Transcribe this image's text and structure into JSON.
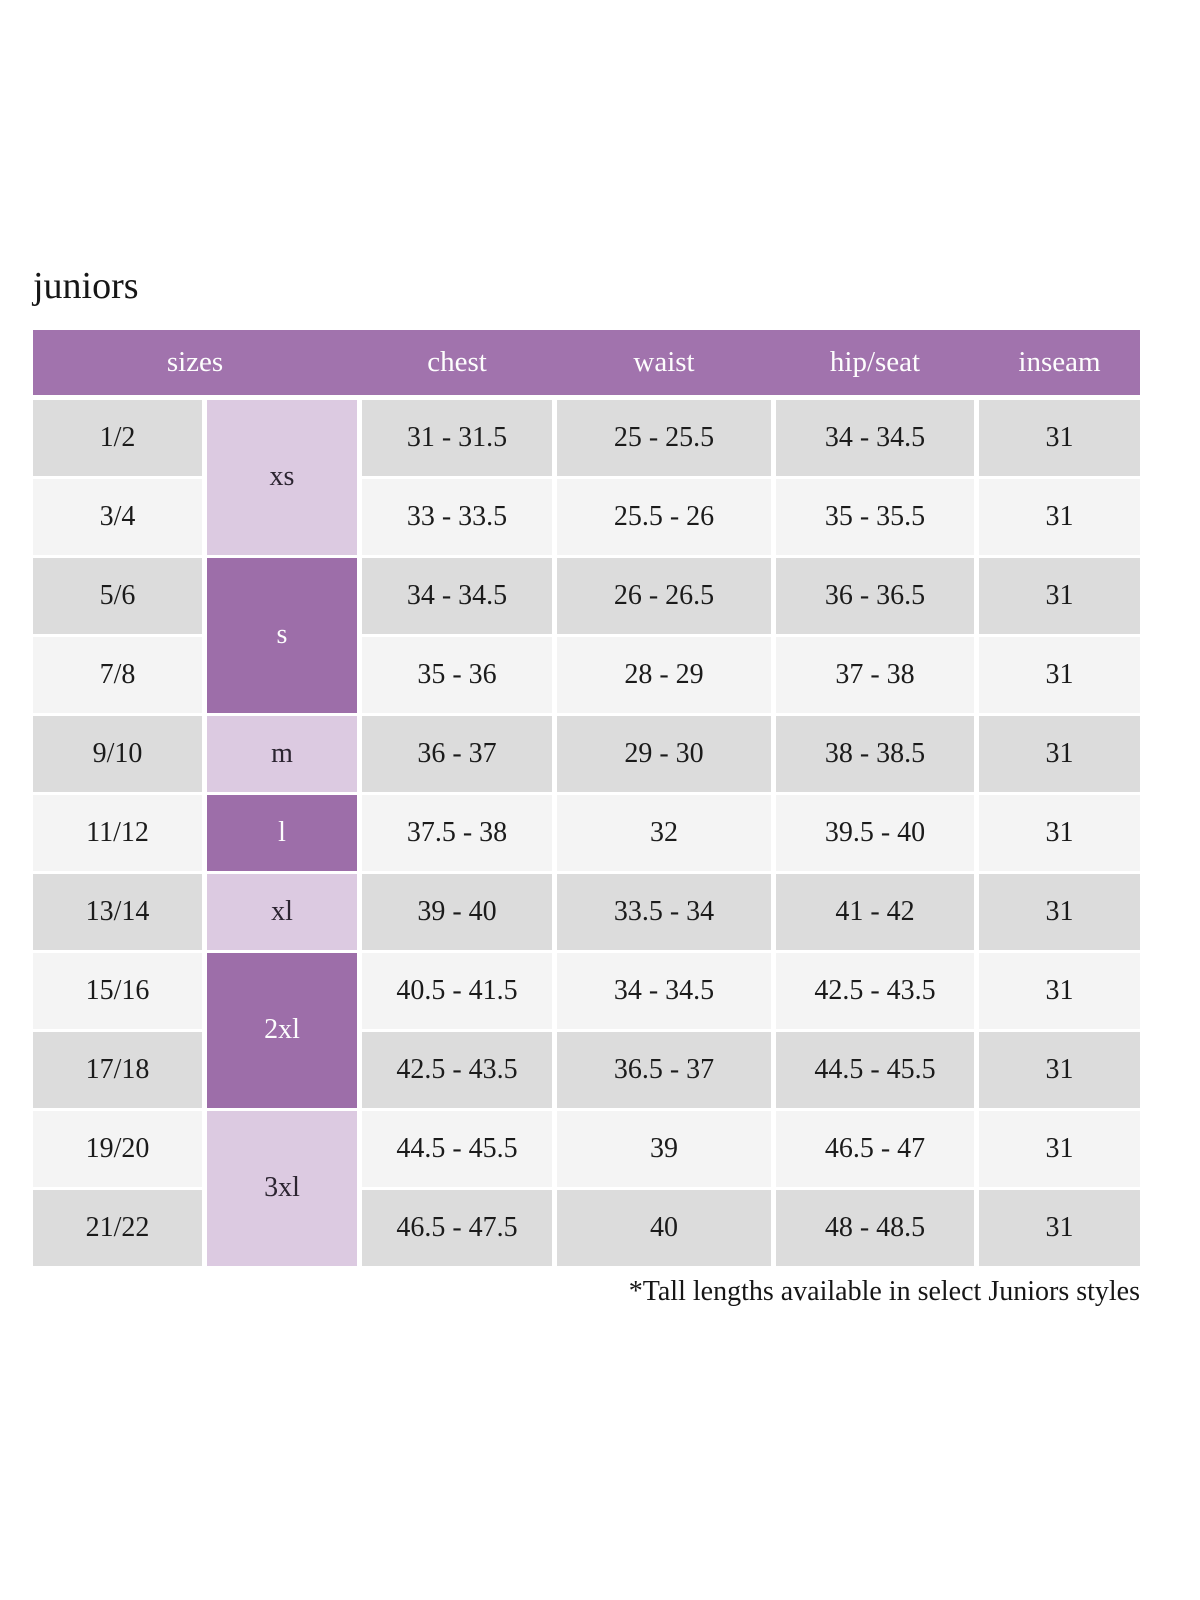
{
  "page": {
    "title": "juniors",
    "footnote": "*Tall lengths available in select Juniors styles"
  },
  "colors": {
    "header_bg": "#a173ad",
    "size_group_dark": "#9d6ea9",
    "size_group_light": "#dccae1",
    "row_shaded": "#dcdcdc",
    "row_plain": "#f4f4f4",
    "header_text": "#fdfdfd",
    "body_text": "#1b1b1b"
  },
  "table": {
    "headers": {
      "sizes": "sizes",
      "chest": "chest",
      "waist": "waist",
      "hip_seat": "hip/seat",
      "inseam": "inseam"
    },
    "size_groups": [
      {
        "label": "xs",
        "rows_spanned": 2,
        "shade": "light"
      },
      {
        "label": "s",
        "rows_spanned": 2,
        "shade": "dark"
      },
      {
        "label": "m",
        "rows_spanned": 1,
        "shade": "light"
      },
      {
        "label": "l",
        "rows_spanned": 1,
        "shade": "dark"
      },
      {
        "label": "xl",
        "rows_spanned": 1,
        "shade": "light"
      },
      {
        "label": "2xl",
        "rows_spanned": 2,
        "shade": "dark"
      },
      {
        "label": "3xl",
        "rows_spanned": 2,
        "shade": "light"
      }
    ],
    "rows": [
      {
        "size": "1/2",
        "chest": "31 - 31.5",
        "waist": "25 - 25.5",
        "hip_seat": "34 - 34.5",
        "inseam": "31"
      },
      {
        "size": "3/4",
        "chest": "33 - 33.5",
        "waist": "25.5 - 26",
        "hip_seat": "35 - 35.5",
        "inseam": "31"
      },
      {
        "size": "5/6",
        "chest": "34 - 34.5",
        "waist": "26 - 26.5",
        "hip_seat": "36 - 36.5",
        "inseam": "31"
      },
      {
        "size": "7/8",
        "chest": "35 - 36",
        "waist": "28 - 29",
        "hip_seat": "37 - 38",
        "inseam": "31"
      },
      {
        "size": "9/10",
        "chest": "36 - 37",
        "waist": "29 - 30",
        "hip_seat": "38 - 38.5",
        "inseam": "31"
      },
      {
        "size": "11/12",
        "chest": "37.5 - 38",
        "waist": "32",
        "hip_seat": "39.5 - 40",
        "inseam": "31"
      },
      {
        "size": "13/14",
        "chest": "39 - 40",
        "waist": "33.5 - 34",
        "hip_seat": "41 - 42",
        "inseam": "31"
      },
      {
        "size": "15/16",
        "chest": "40.5 - 41.5",
        "waist": "34 - 34.5",
        "hip_seat": "42.5 - 43.5",
        "inseam": "31"
      },
      {
        "size": "17/18",
        "chest": "42.5 - 43.5",
        "waist": "36.5 - 37",
        "hip_seat": "44.5 - 45.5",
        "inseam": "31"
      },
      {
        "size": "19/20",
        "chest": "44.5 - 45.5",
        "waist": "39",
        "hip_seat": "46.5 - 47",
        "inseam": "31"
      },
      {
        "size": "21/22",
        "chest": "46.5 - 47.5",
        "waist": "40",
        "hip_seat": "48 - 48.5",
        "inseam": "31"
      }
    ]
  },
  "chart_data": {
    "type": "table",
    "title": "juniors",
    "columns": [
      "sizes (numeric)",
      "sizes (letter)",
      "chest",
      "waist",
      "hip/seat",
      "inseam"
    ],
    "rows": [
      [
        "1/2",
        "xs",
        "31 - 31.5",
        "25 - 25.5",
        "34 - 34.5",
        "31"
      ],
      [
        "3/4",
        "xs",
        "33 - 33.5",
        "25.5 - 26",
        "35 - 35.5",
        "31"
      ],
      [
        "5/6",
        "s",
        "34 - 34.5",
        "26 - 26.5",
        "36 - 36.5",
        "31"
      ],
      [
        "7/8",
        "s",
        "35 - 36",
        "28 - 29",
        "37 - 38",
        "31"
      ],
      [
        "9/10",
        "m",
        "36 - 37",
        "29 - 30",
        "38 - 38.5",
        "31"
      ],
      [
        "11/12",
        "l",
        "37.5 - 38",
        "32",
        "39.5 - 40",
        "31"
      ],
      [
        "13/14",
        "xl",
        "39 - 40",
        "33.5 - 34",
        "41 - 42",
        "31"
      ],
      [
        "15/16",
        "2xl",
        "40.5 - 41.5",
        "34 - 34.5",
        "42.5 - 43.5",
        "31"
      ],
      [
        "17/18",
        "2xl",
        "42.5 - 43.5",
        "36.5 - 37",
        "44.5 - 45.5",
        "31"
      ],
      [
        "19/20",
        "3xl",
        "44.5 - 45.5",
        "39",
        "46.5 - 47",
        "31"
      ],
      [
        "21/22",
        "3xl",
        "46.5 - 47.5",
        "40",
        "48 - 48.5",
        "31"
      ]
    ],
    "annotation": "*Tall lengths available in select Juniors styles"
  }
}
